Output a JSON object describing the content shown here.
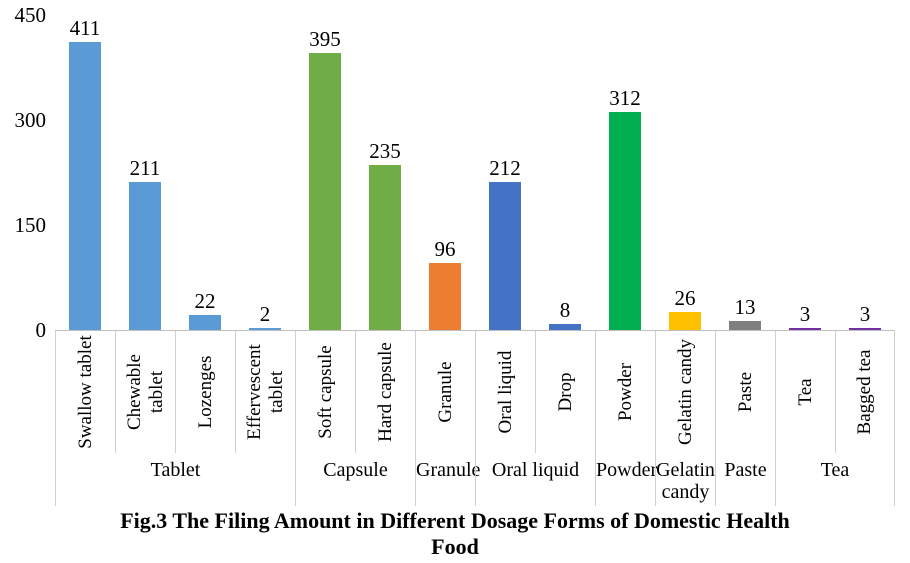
{
  "figure_title": {
    "line1": "Fig.3 The Filing Amount in Different Dosage Forms of Domestic Health",
    "line2": "Food"
  },
  "chart_data": {
    "type": "bar",
    "title": "Fig.3 The Filing Amount in Different Dosage Forms of Domestic Health Food",
    "xlabel": "",
    "ylabel": "",
    "ylim": [
      0,
      450
    ],
    "y_ticks": [
      0,
      150,
      300,
      450
    ],
    "grid": false,
    "legend": "none",
    "categories": [
      "Swallow tablet",
      "Chewable tablet",
      "Lozenges",
      "Effervescent tablet",
      "Soft capsule",
      "Hard capsule",
      "Granule",
      "Oral liquid",
      "Drop",
      "Powder",
      "Gelatin candy",
      "Paste",
      "Tea",
      "Bagged tea"
    ],
    "values": [
      411,
      211,
      22,
      2,
      395,
      235,
      96,
      212,
      8,
      312,
      26,
      13,
      3,
      3
    ],
    "bar_colors": [
      "#5B9BD5",
      "#5B9BD5",
      "#5B9BD5",
      "#5B9BD5",
      "#70AD47",
      "#70AD47",
      "#ED7D31",
      "#4472C4",
      "#4472C4",
      "#00B050",
      "#FFC000",
      "#7F7F7F",
      "#7030A0",
      "#7030A0"
    ],
    "groups": [
      {
        "label": "Tablet",
        "span": 4
      },
      {
        "label": "Capsule",
        "span": 2
      },
      {
        "label": "Granule",
        "span": 1
      },
      {
        "label": "Oral liquid",
        "span": 2
      },
      {
        "label": "Powder",
        "span": 1
      },
      {
        "label": "Gelatin candy",
        "span": 1
      },
      {
        "label": "Paste",
        "span": 1
      },
      {
        "label": "Tea",
        "span": 2
      }
    ],
    "axis_line_color": "#bfbfbf",
    "text_color": "#000000"
  }
}
